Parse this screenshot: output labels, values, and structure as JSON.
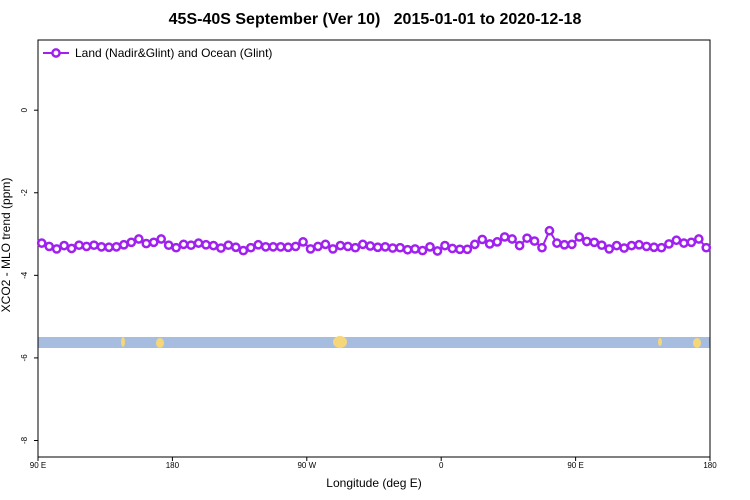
{
  "chart_data": {
    "type": "line",
    "title": "45S-40S September (Ver 10)   2015-01-01 to 2020-12-18",
    "xlabel": "Longitude (deg E)",
    "ylabel": "XCO2 - MLO trend (ppm)",
    "xlim": [
      90,
      540
    ],
    "ylim": [
      -8.4,
      1.7
    ],
    "xticks": [
      {
        "value": 90,
        "label": "90 E"
      },
      {
        "value": 180,
        "label": "180"
      },
      {
        "value": 270,
        "label": "90 W"
      },
      {
        "value": 360,
        "label": "0"
      },
      {
        "value": 450,
        "label": "90 E"
      },
      {
        "value": 540,
        "label": "180"
      }
    ],
    "yticks": [
      0,
      -2,
      -4,
      -6,
      -8
    ],
    "legend": "top-left",
    "x": [
      92.5,
      97.5,
      102.5,
      107.5,
      112.5,
      117.5,
      122.5,
      127.5,
      132.5,
      137.5,
      142.5,
      147.5,
      152.5,
      157.5,
      162.5,
      167.5,
      172.5,
      177.5,
      182.5,
      187.5,
      192.5,
      197.5,
      202.5,
      207.5,
      212.5,
      217.5,
      222.5,
      227.5,
      232.5,
      237.5,
      242.5,
      247.5,
      252.5,
      257.5,
      262.5,
      267.5,
      272.5,
      277.5,
      282.5,
      287.5,
      292.5,
      297.5,
      302.5,
      307.5,
      312.5,
      317.5,
      322.5,
      327.5,
      332.5,
      337.5,
      342.5,
      347.5,
      352.5,
      357.5,
      362.5,
      367.5,
      372.5,
      377.5,
      382.5,
      387.5,
      392.5,
      397.5,
      402.5,
      407.5,
      412.5,
      417.5,
      422.5,
      427.5,
      432.5,
      437.5,
      442.5,
      447.5,
      452.5,
      457.5,
      462.5,
      467.5,
      472.5,
      477.5,
      482.5,
      487.5,
      492.5,
      497.5,
      502.5,
      507.5,
      512.5,
      517.5,
      522.5,
      527.5,
      532.5,
      537.5
    ],
    "series": [
      {
        "name": "Land (Nadir&Glint) and Ocean (Glint)",
        "color": "#a020f0",
        "values": [
          -3.22,
          -3.3,
          -3.36,
          -3.28,
          -3.35,
          -3.27,
          -3.3,
          -3.27,
          -3.31,
          -3.32,
          -3.31,
          -3.26,
          -3.2,
          -3.12,
          -3.23,
          -3.2,
          -3.12,
          -3.27,
          -3.33,
          -3.25,
          -3.27,
          -3.22,
          -3.26,
          -3.28,
          -3.34,
          -3.27,
          -3.32,
          -3.4,
          -3.33,
          -3.26,
          -3.31,
          -3.31,
          -3.31,
          -3.32,
          -3.3,
          -3.19,
          -3.36,
          -3.3,
          -3.25,
          -3.36,
          -3.28,
          -3.3,
          -3.33,
          -3.25,
          -3.29,
          -3.32,
          -3.31,
          -3.34,
          -3.33,
          -3.38,
          -3.36,
          -3.4,
          -3.31,
          -3.41,
          -3.28,
          -3.35,
          -3.37,
          -3.37,
          -3.25,
          -3.13,
          -3.24,
          -3.19,
          -3.07,
          -3.12,
          -3.28,
          -3.1,
          -3.17,
          -3.33,
          -2.92,
          -3.22,
          -3.26,
          -3.25,
          -3.07,
          -3.18,
          -3.2,
          -3.27,
          -3.36,
          -3.28,
          -3.34,
          -3.28,
          -3.26,
          -3.3,
          -3.32,
          -3.33,
          -3.24,
          -3.15,
          -3.22,
          -3.2,
          -3.12,
          -3.33
        ]
      }
    ]
  }
}
